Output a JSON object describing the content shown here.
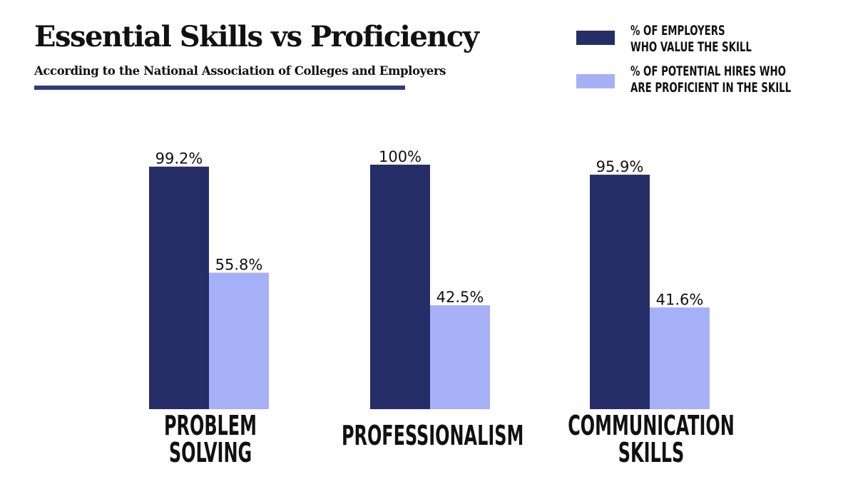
{
  "title": "Essential Skills vs Proficiency",
  "subtitle": "According to the National Association of Colleges and Employers",
  "colors": {
    "employers": "#252e66",
    "hires": "#a6b0f6",
    "underline": "#2e3a7c",
    "text": "#111111"
  },
  "legend": [
    {
      "label": "% OF EMPLOYERS\nWHO VALUE THE SKILL",
      "color": "#252e66"
    },
    {
      "label": "% OF POTENTIAL HIRES WHO\nARE PROFICIENT IN THE SKILL",
      "color": "#a6b0f6"
    }
  ],
  "chart_data": {
    "type": "bar",
    "title": "Essential Skills vs Proficiency",
    "subtitle": "According to the National Association of Colleges and Employers",
    "categories": [
      "PROBLEM\nSOLVING",
      "PROFESSIONALISM",
      "COMMUNICATION\nSKILLS"
    ],
    "series": [
      {
        "name": "% OF EMPLOYERS WHO VALUE THE SKILL",
        "values": [
          99.2,
          100,
          95.9
        ],
        "labels": [
          "99.2%",
          "100%",
          "95.9%"
        ]
      },
      {
        "name": "% OF POTENTIAL HIRES WHO ARE PROFICIENT IN THE SKILL",
        "values": [
          55.8,
          42.5,
          41.6
        ],
        "labels": [
          "55.8%",
          "42.5%",
          "41.6%"
        ]
      }
    ],
    "ylim": [
      0,
      100
    ],
    "grid": false,
    "legend_position": "top-right"
  }
}
